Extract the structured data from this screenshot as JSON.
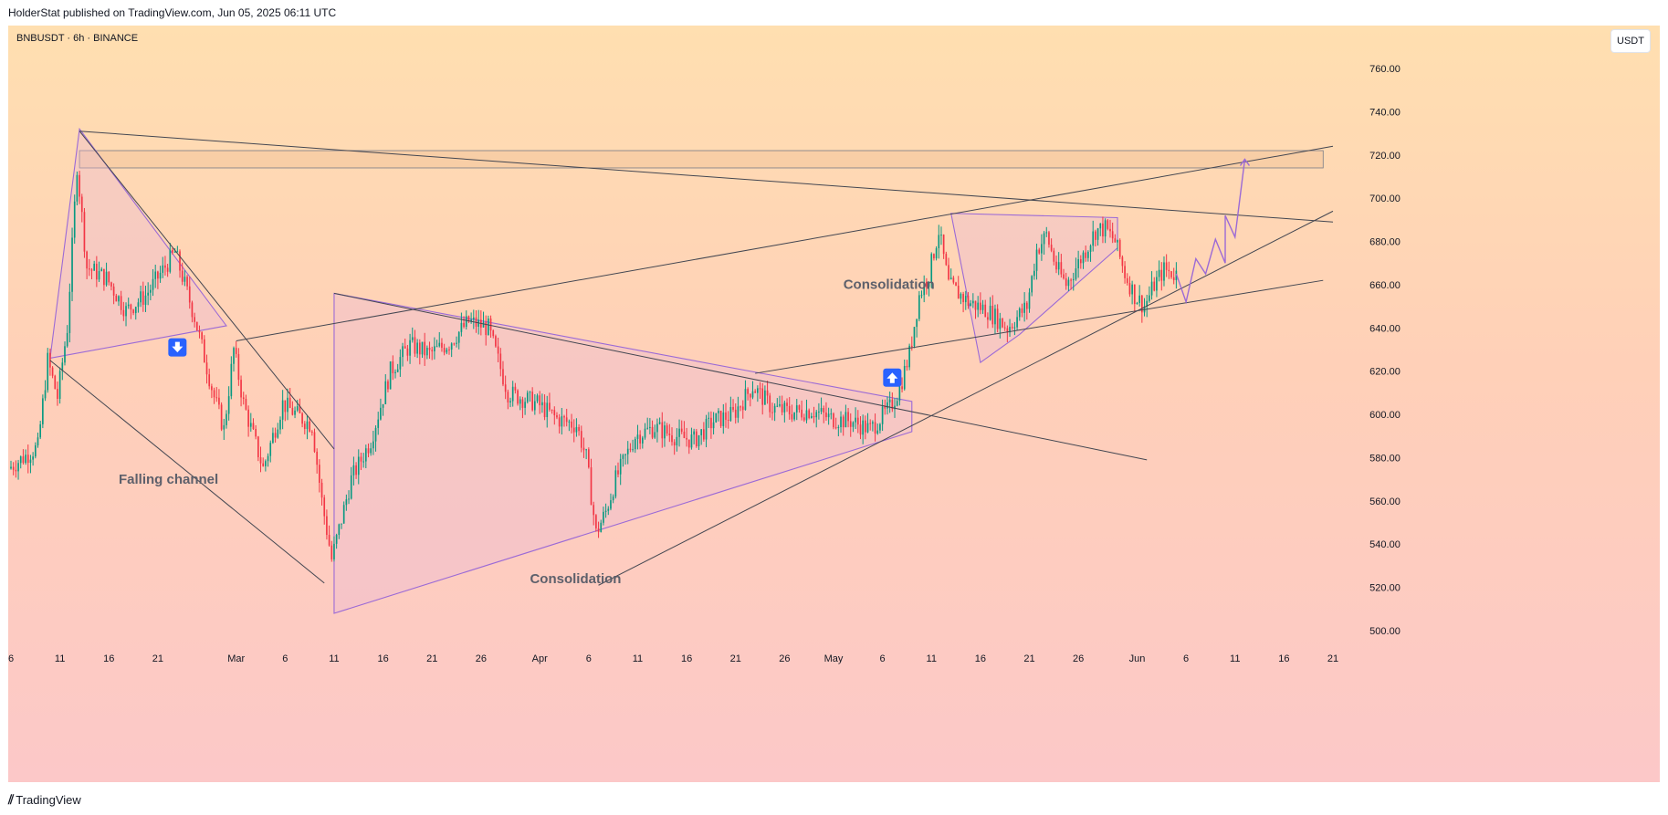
{
  "header": {
    "publisher_line": "HolderStat published on TradingView.com, Jun 05, 2025 06:11 UTC"
  },
  "chart": {
    "symbol_line": "BNBUSDT · 6h · BINANCE",
    "currency": "USDT"
  },
  "footer": {
    "brand": "TradingView",
    "logo": "tradingview-logo-icon"
  },
  "colors": {
    "up_candle": "#089981",
    "down_candle": "#f23645",
    "pattern_line": "#9b6ad6",
    "trend_line": "#434651",
    "zone_fill": "#f5c9a2",
    "badge_blue": "#2962ff"
  },
  "chart_data": {
    "type": "candlestick",
    "timeframe": "6h",
    "y_axis": {
      "min": 490,
      "max": 770,
      "position": "right",
      "ticks": [
        "760.00",
        "740.00",
        "720.00",
        "700.00",
        "680.00",
        "660.00",
        "640.00",
        "620.00",
        "600.00",
        "580.00",
        "560.00",
        "540.00",
        "520.00",
        "500.00"
      ]
    },
    "x_axis": {
      "start": "2025-02-06",
      "end": "2025-06-21",
      "ticks": [
        {
          "label": "6",
          "date": "2025-02-06"
        },
        {
          "label": "11",
          "date": "2025-02-11"
        },
        {
          "label": "16",
          "date": "2025-02-16"
        },
        {
          "label": "21",
          "date": "2025-02-21"
        },
        {
          "label": "Mar",
          "date": "2025-03-01"
        },
        {
          "label": "6",
          "date": "2025-03-06"
        },
        {
          "label": "11",
          "date": "2025-03-11"
        },
        {
          "label": "16",
          "date": "2025-03-16"
        },
        {
          "label": "21",
          "date": "2025-03-21"
        },
        {
          "label": "26",
          "date": "2025-03-26"
        },
        {
          "label": "Apr",
          "date": "2025-04-01"
        },
        {
          "label": "6",
          "date": "2025-04-06"
        },
        {
          "label": "11",
          "date": "2025-04-11"
        },
        {
          "label": "16",
          "date": "2025-04-16"
        },
        {
          "label": "21",
          "date": "2025-04-21"
        },
        {
          "label": "26",
          "date": "2025-04-26"
        },
        {
          "label": "May",
          "date": "2025-05-01"
        },
        {
          "label": "6",
          "date": "2025-05-06"
        },
        {
          "label": "11",
          "date": "2025-05-11"
        },
        {
          "label": "16",
          "date": "2025-05-16"
        },
        {
          "label": "21",
          "date": "2025-05-21"
        },
        {
          "label": "26",
          "date": "2025-05-26"
        },
        {
          "label": "Jun",
          "date": "2025-06-01"
        },
        {
          "label": "6",
          "date": "2025-06-06"
        },
        {
          "label": "11",
          "date": "2025-06-11"
        },
        {
          "label": "16",
          "date": "2025-06-16"
        },
        {
          "label": "21",
          "date": "2025-06-21"
        }
      ]
    },
    "price_path": [
      {
        "date": "2025-02-06",
        "price": 575
      },
      {
        "date": "2025-02-09",
        "price": 585
      },
      {
        "date": "2025-02-10",
        "price": 625
      },
      {
        "date": "2025-02-11",
        "price": 608
      },
      {
        "date": "2025-02-12",
        "price": 640
      },
      {
        "date": "2025-02-13",
        "price": 715
      },
      {
        "date": "2025-02-14",
        "price": 668
      },
      {
        "date": "2025-02-16",
        "price": 663
      },
      {
        "date": "2025-02-18",
        "price": 648
      },
      {
        "date": "2025-02-20",
        "price": 655
      },
      {
        "date": "2025-02-23",
        "price": 675
      },
      {
        "date": "2025-02-25",
        "price": 645
      },
      {
        "date": "2025-02-27",
        "price": 608
      },
      {
        "date": "2025-02-28",
        "price": 593
      },
      {
        "date": "2025-03-01",
        "price": 630
      },
      {
        "date": "2025-03-02",
        "price": 605
      },
      {
        "date": "2025-03-04",
        "price": 575
      },
      {
        "date": "2025-03-06",
        "price": 605
      },
      {
        "date": "2025-03-08",
        "price": 598
      },
      {
        "date": "2025-03-09",
        "price": 595
      },
      {
        "date": "2025-03-10",
        "price": 560
      },
      {
        "date": "2025-03-11",
        "price": 533
      },
      {
        "date": "2025-03-13",
        "price": 570
      },
      {
        "date": "2025-03-15",
        "price": 588
      },
      {
        "date": "2025-03-17",
        "price": 620
      },
      {
        "date": "2025-03-19",
        "price": 632
      },
      {
        "date": "2025-03-21",
        "price": 628
      },
      {
        "date": "2025-03-23",
        "price": 633
      },
      {
        "date": "2025-03-25",
        "price": 643
      },
      {
        "date": "2025-03-27",
        "price": 640
      },
      {
        "date": "2025-03-29",
        "price": 610
      },
      {
        "date": "2025-04-01",
        "price": 605
      },
      {
        "date": "2025-04-03",
        "price": 598
      },
      {
        "date": "2025-04-05",
        "price": 595
      },
      {
        "date": "2025-04-06",
        "price": 580
      },
      {
        "date": "2025-04-07",
        "price": 545
      },
      {
        "date": "2025-04-08",
        "price": 555
      },
      {
        "date": "2025-04-09",
        "price": 570
      },
      {
        "date": "2025-04-11",
        "price": 590
      },
      {
        "date": "2025-04-13",
        "price": 594
      },
      {
        "date": "2025-04-15",
        "price": 590
      },
      {
        "date": "2025-04-17",
        "price": 588
      },
      {
        "date": "2025-04-19",
        "price": 597
      },
      {
        "date": "2025-04-21",
        "price": 600
      },
      {
        "date": "2025-04-23",
        "price": 613
      },
      {
        "date": "2025-04-25",
        "price": 603
      },
      {
        "date": "2025-04-27",
        "price": 601
      },
      {
        "date": "2025-04-29",
        "price": 602
      },
      {
        "date": "2025-05-01",
        "price": 598
      },
      {
        "date": "2025-05-03",
        "price": 597
      },
      {
        "date": "2025-05-05",
        "price": 593
      },
      {
        "date": "2025-05-07",
        "price": 603
      },
      {
        "date": "2025-05-08",
        "price": 612
      },
      {
        "date": "2025-05-09",
        "price": 628
      },
      {
        "date": "2025-05-10",
        "price": 655
      },
      {
        "date": "2025-05-11",
        "price": 665
      },
      {
        "date": "2025-05-12",
        "price": 685
      },
      {
        "date": "2025-05-13",
        "price": 660
      },
      {
        "date": "2025-05-15",
        "price": 652
      },
      {
        "date": "2025-05-17",
        "price": 648
      },
      {
        "date": "2025-05-19",
        "price": 640
      },
      {
        "date": "2025-05-21",
        "price": 650
      },
      {
        "date": "2025-05-22",
        "price": 676
      },
      {
        "date": "2025-05-23",
        "price": 683
      },
      {
        "date": "2025-05-24",
        "price": 668
      },
      {
        "date": "2025-05-25",
        "price": 660
      },
      {
        "date": "2025-05-26",
        "price": 668
      },
      {
        "date": "2025-05-27",
        "price": 676
      },
      {
        "date": "2025-05-28",
        "price": 685
      },
      {
        "date": "2025-05-29",
        "price": 686
      },
      {
        "date": "2025-05-30",
        "price": 680
      },
      {
        "date": "2025-05-31",
        "price": 665
      },
      {
        "date": "2025-06-01",
        "price": 655
      },
      {
        "date": "2025-06-02",
        "price": 650
      },
      {
        "date": "2025-06-03",
        "price": 660
      },
      {
        "date": "2025-06-04",
        "price": 667
      },
      {
        "date": "2025-06-05",
        "price": 665
      }
    ],
    "projection_path": [
      {
        "date": "2025-06-05",
        "price": 665
      },
      {
        "date": "2025-06-06",
        "price": 652
      },
      {
        "date": "2025-06-07",
        "price": 672
      },
      {
        "date": "2025-06-08",
        "price": 665
      },
      {
        "date": "2025-06-09",
        "price": 681
      },
      {
        "date": "2025-06-10",
        "price": 670
      },
      {
        "date": "2025-06-10",
        "price": 692
      },
      {
        "date": "2025-06-11",
        "price": 682
      },
      {
        "date": "2025-06-12",
        "price": 718
      }
    ],
    "zones": [
      {
        "name": "resistance-zone",
        "from": "2025-02-13",
        "to": "2025-06-20",
        "low": 714,
        "high": 722
      }
    ],
    "trendlines": [
      {
        "name": "descending-resistance",
        "from": [
          "2025-02-13",
          731
        ],
        "to": [
          "2025-06-21",
          689
        ]
      },
      {
        "name": "falling-channel-upper",
        "from": [
          "2025-02-13",
          731
        ],
        "to": [
          "2025-03-11",
          584
        ]
      },
      {
        "name": "falling-channel-lower",
        "from": [
          "2025-02-10",
          625
        ],
        "to": [
          "2025-03-10",
          522
        ]
      },
      {
        "name": "consolidation-upper",
        "from": [
          "2025-03-11",
          656
        ],
        "to": [
          "2025-06-02",
          579
        ]
      },
      {
        "name": "rising-support-1",
        "from": [
          "2025-03-01",
          634
        ],
        "to": [
          "2025-06-21",
          724
        ]
      },
      {
        "name": "rising-support-2",
        "from": [
          "2025-04-23",
          619
        ],
        "to": [
          "2025-06-20",
          662
        ]
      },
      {
        "name": "rising-support-3",
        "from": [
          "2025-04-07",
          521
        ],
        "to": [
          "2025-06-21",
          694
        ]
      }
    ],
    "patterns": [
      {
        "name": "flag-pattern",
        "points": [
          [
            "2025-02-10",
            626
          ],
          [
            "2025-02-13",
            732
          ],
          [
            "2025-02-28",
            641
          ]
        ]
      },
      {
        "name": "consolidation-triangle",
        "points": [
          [
            "2025-03-11",
            656
          ],
          [
            "2025-03-11",
            508
          ],
          [
            "2025-05-09",
            592
          ],
          [
            "2025-05-09",
            606
          ]
        ]
      },
      {
        "name": "consolidation-pattern-may",
        "points": [
          [
            "2025-05-13",
            693
          ],
          [
            "2025-05-30",
            691
          ],
          [
            "2025-05-30",
            677
          ],
          [
            "2025-05-20",
            637
          ],
          [
            "2025-05-16",
            624
          ]
        ]
      }
    ],
    "annotations": [
      {
        "text": "Falling channel",
        "date": "2025-02-17",
        "price": 568
      },
      {
        "text": "Consolidation",
        "date": "2025-03-31",
        "price": 522
      },
      {
        "text": "Consolidation",
        "date": "2025-05-02",
        "price": 658
      }
    ],
    "markers": [
      {
        "name": "sell-arrow-icon",
        "direction": "down",
        "date": "2025-02-23",
        "price": 631
      },
      {
        "name": "buy-arrow-icon",
        "direction": "up",
        "date": "2025-05-07",
        "price": 617
      }
    ]
  }
}
